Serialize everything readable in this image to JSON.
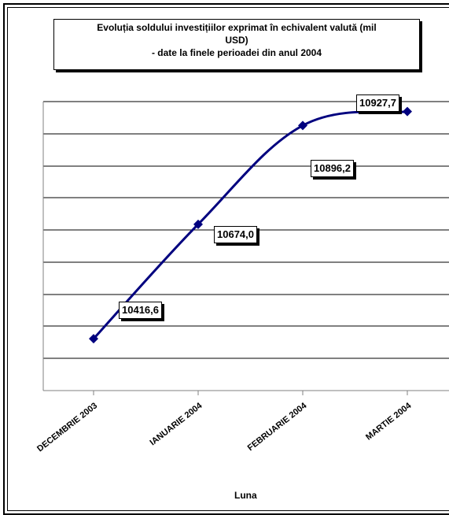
{
  "chart_data": {
    "type": "line",
    "title_lines": [
      "Evoluția soldului investițiilor exprimat în echivalent valută (mil",
      "USD)",
      "- date la finele perioadei din anul 2004"
    ],
    "categories": [
      "DECEMBRIE 2003",
      "IANUARIE 2004",
      "FEBRUARIE 2004",
      "MARTIE 2004"
    ],
    "series": [
      {
        "values": [
          10416.6,
          10674.0,
          10896.2,
          10927.7
        ]
      }
    ],
    "data_labels": [
      "10416,6",
      "10674,0",
      "10896,2",
      "10927,7"
    ],
    "xlabel": "Luna",
    "ylabel": "",
    "ylim": [
      10300,
      10950
    ],
    "grid": true,
    "line_color": "#00007f"
  }
}
